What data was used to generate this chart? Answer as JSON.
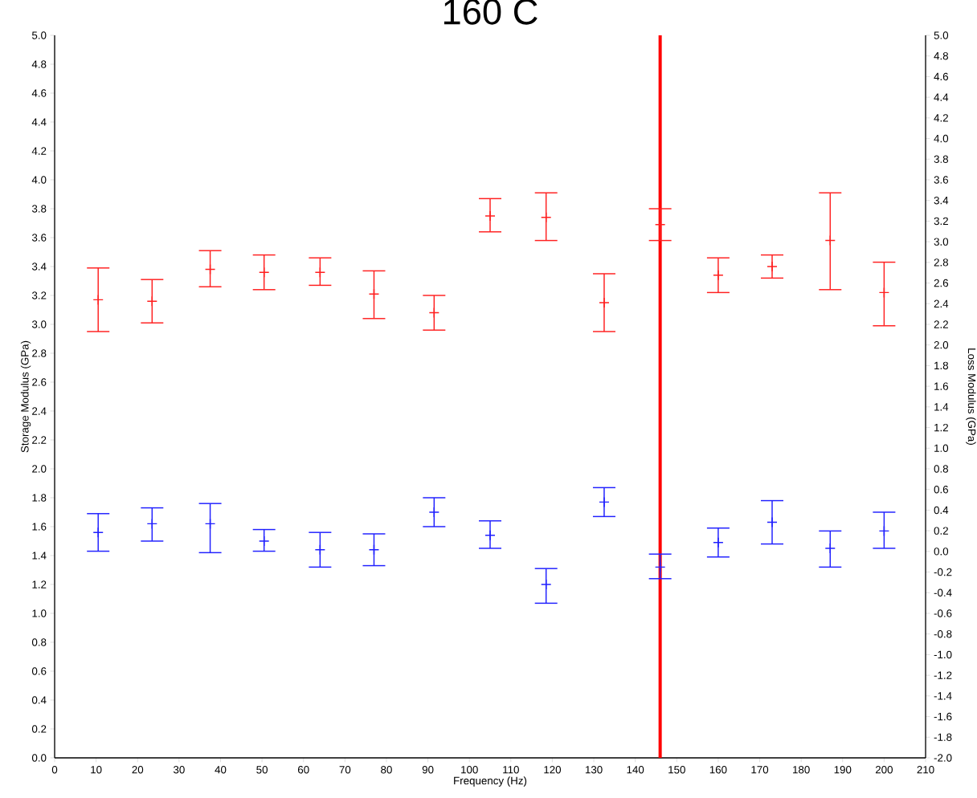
{
  "chart_data": {
    "type": "scatter",
    "title": "160 C",
    "xlabel": "Frequency (Hz)",
    "ylabel": "Storage Modulus (GPa)",
    "y2label": "Loss Modulus (GPa)",
    "x": [
      10.5,
      23.5,
      37.5,
      50.5,
      64,
      77,
      91.5,
      105,
      118.5,
      132.5,
      146,
      160,
      173,
      187,
      200
    ],
    "series": [
      {
        "color": "#ff2020",
        "values": [
          3.17,
          3.16,
          3.38,
          3.36,
          3.36,
          3.21,
          3.08,
          3.75,
          3.74,
          3.15,
          3.69,
          3.34,
          3.4,
          3.58,
          3.22
        ],
        "errors": [
          [
            2.95,
            3.39
          ],
          [
            3.01,
            3.31
          ],
          [
            3.26,
            3.51
          ],
          [
            3.24,
            3.48
          ],
          [
            3.27,
            3.46
          ],
          [
            3.04,
            3.37
          ],
          [
            2.96,
            3.2
          ],
          [
            3.64,
            3.87
          ],
          [
            3.58,
            3.91
          ],
          [
            2.95,
            3.35
          ],
          [
            3.58,
            3.8
          ],
          [
            3.22,
            3.46
          ],
          [
            3.32,
            3.48
          ],
          [
            3.24,
            3.91
          ],
          [
            2.99,
            3.43
          ]
        ]
      },
      {
        "color": "#2020ff",
        "values": [
          1.56,
          1.62,
          1.62,
          1.5,
          1.44,
          1.44,
          1.7,
          1.54,
          1.2,
          1.77,
          1.32,
          1.49,
          1.63,
          1.45,
          1.57
        ],
        "errors": [
          [
            1.43,
            1.69
          ],
          [
            1.5,
            1.73
          ],
          [
            1.42,
            1.76
          ],
          [
            1.43,
            1.58
          ],
          [
            1.32,
            1.56
          ],
          [
            1.33,
            1.55
          ],
          [
            1.6,
            1.8
          ],
          [
            1.45,
            1.64
          ],
          [
            1.07,
            1.31
          ],
          [
            1.67,
            1.87
          ],
          [
            1.24,
            1.41
          ],
          [
            1.39,
            1.59
          ],
          [
            1.48,
            1.78
          ],
          [
            1.32,
            1.57
          ],
          [
            1.45,
            1.7
          ]
        ]
      }
    ],
    "xlim": [
      0,
      210
    ],
    "xticks": [
      0,
      10,
      20,
      30,
      40,
      50,
      60,
      70,
      80,
      90,
      100,
      110,
      120,
      130,
      140,
      150,
      160,
      170,
      180,
      190,
      200,
      210
    ],
    "ylim": [
      0,
      5
    ],
    "yticks": [
      {
        "value": 0,
        "label": "0.0"
      },
      0.2,
      0.4,
      0.6,
      0.8,
      {
        "value": 1,
        "label": "1.0"
      },
      1.2,
      1.4,
      1.6,
      1.8,
      {
        "value": 2,
        "label": "2.0"
      },
      2.2,
      2.4,
      2.6,
      2.8,
      {
        "value": 3,
        "label": "3.0"
      },
      3.2,
      3.4,
      3.6,
      3.8,
      {
        "value": 4,
        "label": "4.0"
      },
      4.2,
      4.4,
      4.6,
      4.8,
      {
        "value": 5,
        "label": "5.0"
      }
    ],
    "y2lim": [
      -2,
      5
    ],
    "y2ticks": [
      {
        "value": -2,
        "label": "-2.0"
      },
      -1.8,
      -1.6,
      -1.4,
      -1.2,
      {
        "value": -1,
        "label": "-1.0"
      },
      -0.8,
      -0.6,
      -0.4,
      -0.2,
      {
        "value": 0,
        "label": "0.0"
      },
      0.2,
      0.4,
      0.6,
      0.8,
      {
        "value": 1,
        "label": "1.0"
      },
      1.2,
      1.4,
      1.6,
      1.8,
      {
        "value": 2,
        "label": "2.0"
      },
      2.2,
      2.4,
      2.6,
      2.8,
      {
        "value": 3,
        "label": "3.0"
      },
      3.2,
      3.4,
      3.6,
      3.8,
      {
        "value": 4,
        "label": "4.0"
      },
      4.2,
      4.4,
      4.6,
      4.8,
      {
        "value": 5,
        "label": "5.0"
      }
    ],
    "ref_lines": [
      {
        "axis": "x",
        "value": 146,
        "color": "#ff0000"
      }
    ],
    "marker": "cross"
  }
}
